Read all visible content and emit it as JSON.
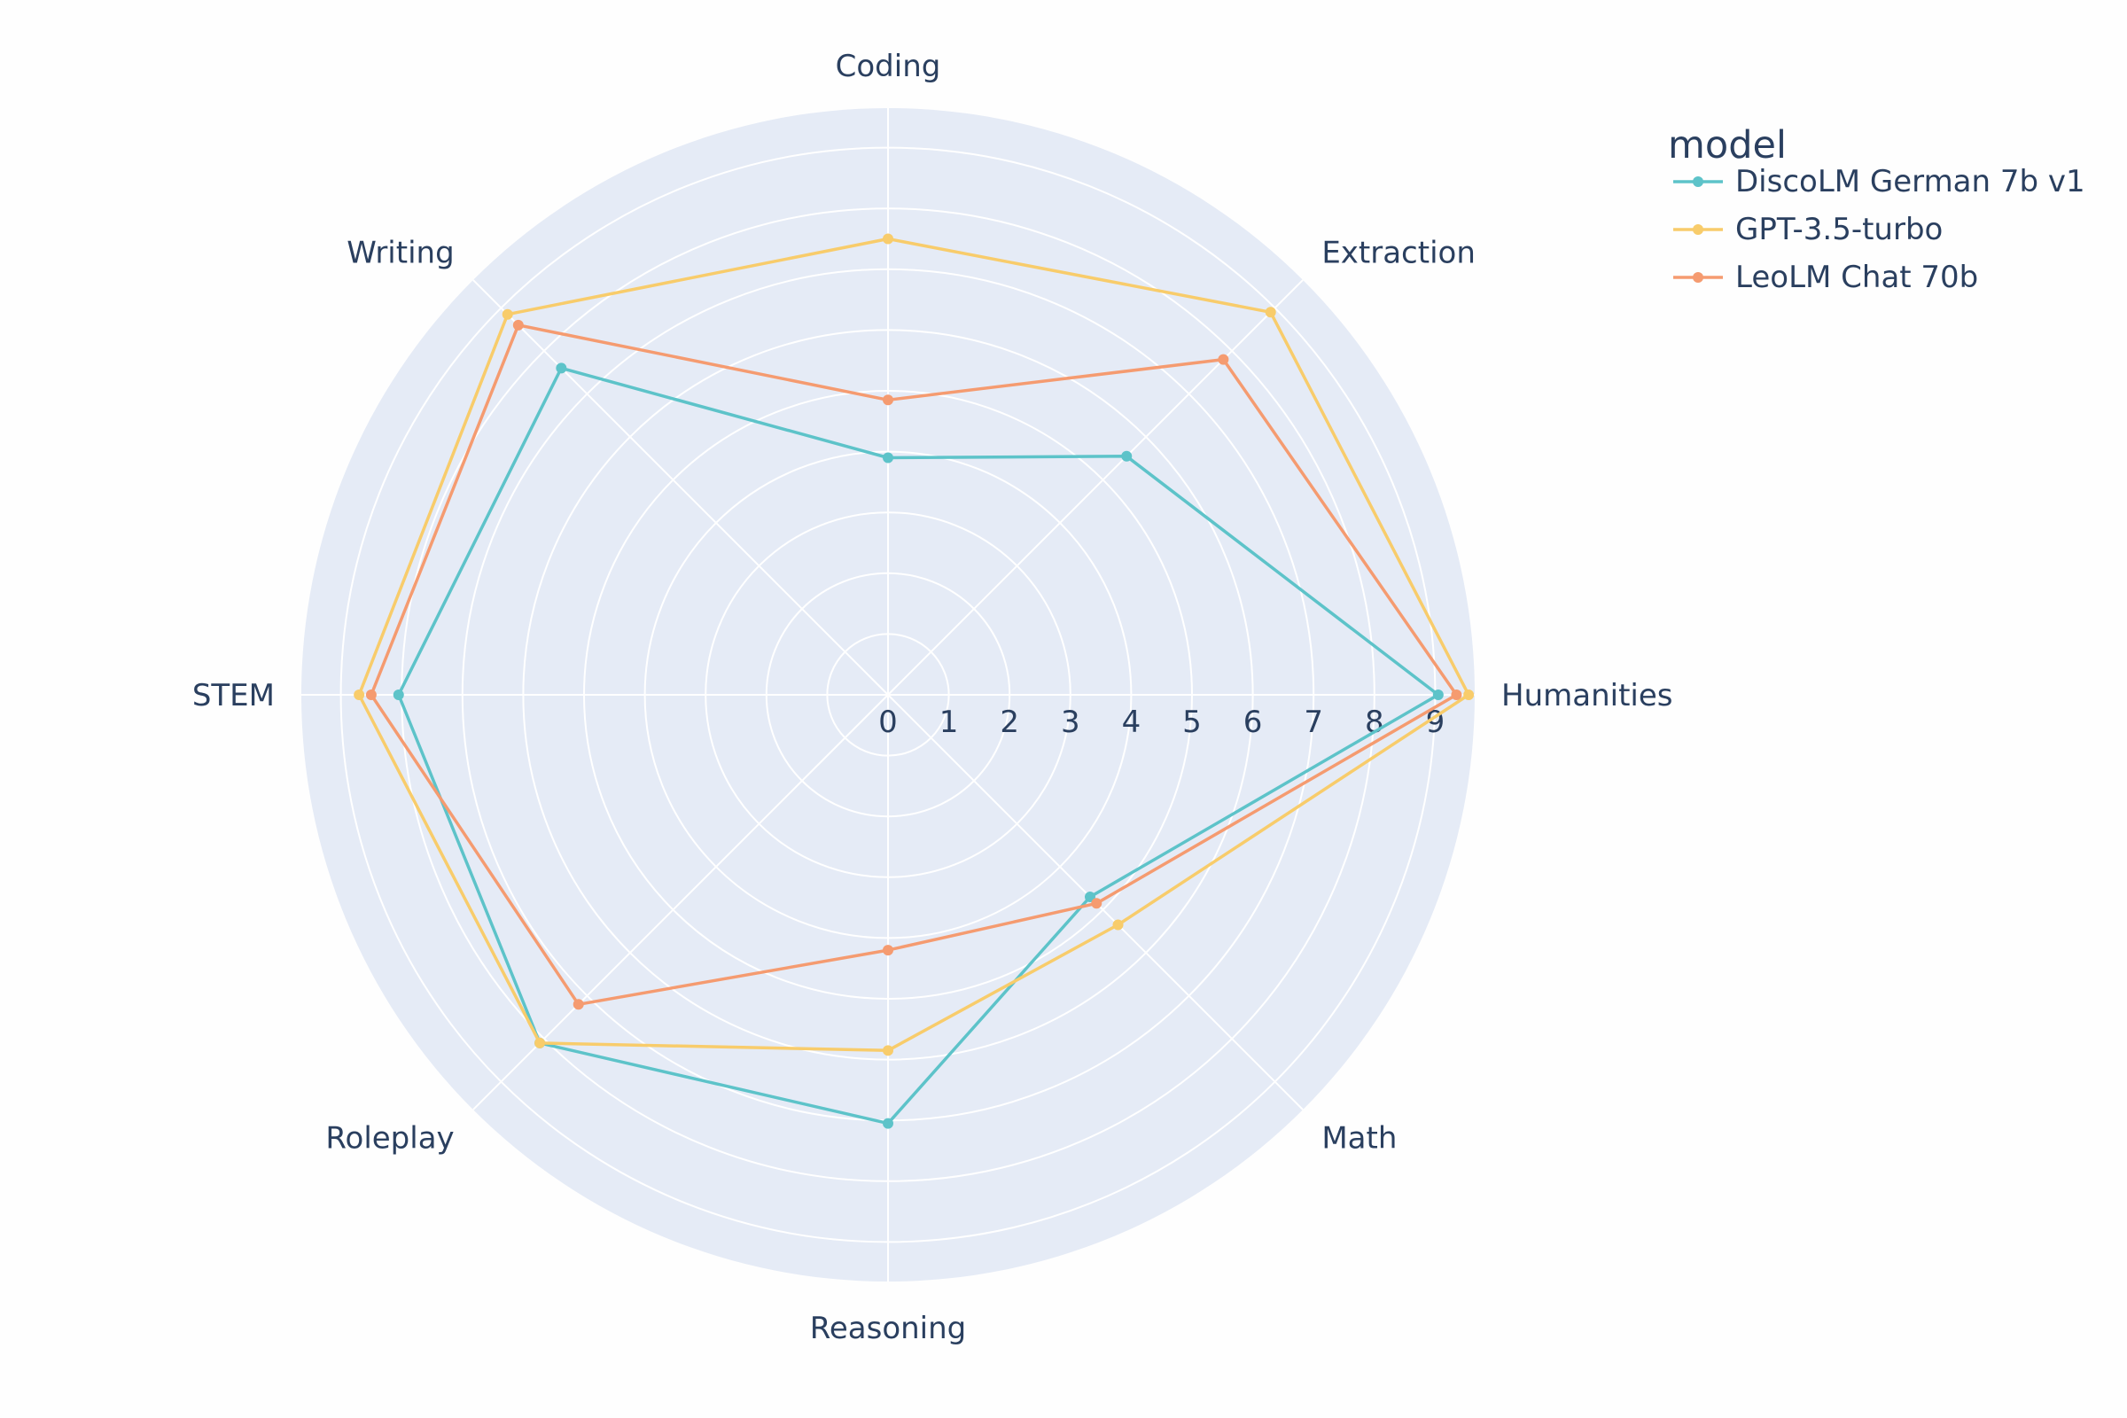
{
  "chart_data": {
    "type": "radar",
    "categories": [
      "Humanities",
      "Extraction",
      "Coding",
      "Writing",
      "STEM",
      "Roleplay",
      "Reasoning",
      "Math"
    ],
    "radial_ticks": [
      "0",
      "1",
      "2",
      "3",
      "4",
      "5",
      "6",
      "7",
      "8",
      "9"
    ],
    "rmax": 9.65,
    "grid": true,
    "legend": {
      "title": "model",
      "position": "top-right"
    },
    "series": [
      {
        "name": "DiscoLM German 7b v1",
        "color": "#5dc3c9",
        "values": [
          9.05,
          5.55,
          3.9,
          7.6,
          8.05,
          8.1,
          7.05,
          4.7
        ]
      },
      {
        "name": "GPT-3.5-turbo",
        "color": "#f8cc6b",
        "values": [
          9.55,
          8.9,
          7.5,
          8.85,
          8.7,
          8.1,
          5.85,
          5.35
        ]
      },
      {
        "name": "LeoLM Chat 70b",
        "color": "#f59b70",
        "values": [
          9.35,
          7.8,
          4.85,
          8.6,
          8.5,
          7.2,
          4.2,
          4.85
        ]
      }
    ]
  }
}
